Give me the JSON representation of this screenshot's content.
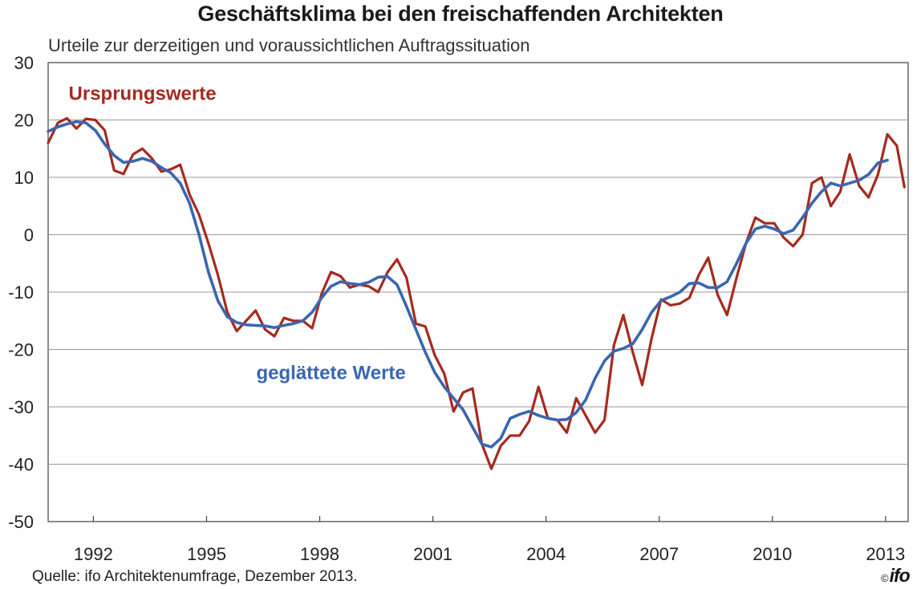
{
  "title": "Geschäftsklima bei den freischaffenden Architekten",
  "subtitle": "Urteile zur derzeitigen und voraussichtlichen Auftragssituation",
  "source": "Quelle: ifo Architektenumfrage, Dezember  2013.",
  "logo": {
    "copyright": "©",
    "text": "ifo"
  },
  "chart_data": {
    "type": "line",
    "ylim": [
      -50,
      30
    ],
    "yticks": [
      30,
      20,
      10,
      0,
      -10,
      -20,
      -30,
      -40,
      -50
    ],
    "xlim": [
      1990.8,
      2013.6
    ],
    "xticks": [
      "1992",
      "1995",
      "1998",
      "2001",
      "2004",
      "2007",
      "2010",
      "2013"
    ],
    "xtick_positions": [
      1992,
      1995,
      1998,
      2001,
      2004,
      2007,
      2010,
      2013
    ],
    "grid": true,
    "series": [
      {
        "name": "Ursprungswerte",
        "color": "#a52a1f",
        "label_position": [
          1993.3,
          23.5
        ],
        "x": [
          1990.8,
          1991.06,
          1991.3,
          1991.55,
          1991.8,
          1992.05,
          1992.3,
          1992.55,
          1992.8,
          1993.05,
          1993.3,
          1993.55,
          1993.8,
          1994.05,
          1994.3,
          1994.55,
          1994.8,
          1995.05,
          1995.3,
          1995.55,
          1995.8,
          1996.05,
          1996.3,
          1996.55,
          1996.8,
          1997.05,
          1997.3,
          1997.55,
          1997.8,
          1998.05,
          1998.3,
          1998.55,
          1998.8,
          1999.05,
          1999.3,
          1999.55,
          1999.8,
          2000.05,
          2000.3,
          2000.55,
          2000.8,
          2001.05,
          2001.3,
          2001.55,
          2001.8,
          2002.05,
          2002.3,
          2002.55,
          2002.8,
          2003.05,
          2003.3,
          2003.55,
          2003.8,
          2004.05,
          2004.3,
          2004.55,
          2004.8,
          2005.05,
          2005.3,
          2005.55,
          2005.8,
          2006.05,
          2006.3,
          2006.55,
          2006.8,
          2007.05,
          2007.3,
          2007.55,
          2007.8,
          2008.05,
          2008.3,
          2008.55,
          2008.8,
          2009.05,
          2009.3,
          2009.55,
          2009.8,
          2010.05,
          2010.3,
          2010.55,
          2010.8,
          2011.05,
          2011.3,
          2011.55,
          2011.8,
          2012.05,
          2012.3,
          2012.55,
          2012.8,
          2013.05,
          2013.3,
          2013.5
        ],
        "values": [
          16,
          19.5,
          20.3,
          18.5,
          20.2,
          20,
          18.2,
          11.2,
          10.6,
          14,
          15,
          13.3,
          11,
          11.4,
          12.2,
          7,
          3.5,
          -1.5,
          -7,
          -13.5,
          -16.8,
          -15,
          -13.2,
          -16.5,
          -17.7,
          -14.5,
          -15,
          -15,
          -16.3,
          -10.3,
          -6.5,
          -7.2,
          -9.2,
          -8.7,
          -9,
          -10,
          -6.5,
          -4.3,
          -7.5,
          -15.5,
          -16,
          -21,
          -24.2,
          -30.8,
          -27.5,
          -26.8,
          -36.5,
          -40.8,
          -36.8,
          -35,
          -35,
          -32.5,
          -26.5,
          -32,
          -32.3,
          -34.5,
          -28.5,
          -31.5,
          -34.5,
          -32.3,
          -19.2,
          -14,
          -20.5,
          -26.2,
          -18,
          -11.3,
          -12.3,
          -12,
          -11,
          -7,
          -4,
          -10.5,
          -14,
          -7.5,
          -1.5,
          3,
          2,
          2,
          -0.5,
          -2,
          0,
          9,
          10,
          5,
          7.5,
          14,
          8.5,
          6.5,
          10.5,
          17.5,
          15.5,
          8.3
        ]
      },
      {
        "name": "geglättete Werte",
        "color": "#3a66b0",
        "label_position": [
          1998.3,
          -25.2
        ],
        "x": [
          1990.8,
          1991.06,
          1991.3,
          1991.55,
          1991.8,
          1992.05,
          1992.3,
          1992.55,
          1992.8,
          1993.05,
          1993.3,
          1993.55,
          1993.8,
          1994.05,
          1994.3,
          1994.55,
          1994.8,
          1995.05,
          1995.3,
          1995.55,
          1995.8,
          1996.05,
          1996.3,
          1996.55,
          1996.8,
          1997.05,
          1997.3,
          1997.55,
          1997.8,
          1998.05,
          1998.3,
          1998.55,
          1998.8,
          1999.05,
          1999.3,
          1999.55,
          1999.8,
          2000.05,
          2000.3,
          2000.55,
          2000.8,
          2001.05,
          2001.3,
          2001.55,
          2001.8,
          2002.05,
          2002.3,
          2002.55,
          2002.8,
          2003.05,
          2003.3,
          2003.55,
          2003.8,
          2004.05,
          2004.3,
          2004.55,
          2004.8,
          2005.05,
          2005.3,
          2005.55,
          2005.8,
          2006.05,
          2006.3,
          2006.55,
          2006.8,
          2007.05,
          2007.3,
          2007.55,
          2007.8,
          2008.05,
          2008.3,
          2008.55,
          2008.8,
          2009.05,
          2009.3,
          2009.55,
          2009.8,
          2010.05,
          2010.3,
          2010.55,
          2010.8,
          2011.05,
          2011.3,
          2011.55,
          2011.8,
          2012.05,
          2012.3,
          2012.55,
          2012.8,
          2013.05
        ],
        "values": [
          18,
          18.8,
          19.3,
          19.7,
          19.5,
          18.2,
          15.8,
          13.8,
          12.6,
          12.8,
          13.3,
          12.8,
          11.7,
          10.8,
          9,
          5.5,
          0,
          -6.5,
          -11.5,
          -14.3,
          -15.3,
          -15.7,
          -15.8,
          -15.9,
          -16.2,
          -15.8,
          -15.5,
          -15,
          -13.5,
          -11,
          -9,
          -8.2,
          -8.5,
          -8.7,
          -8.3,
          -7.4,
          -7.3,
          -8.7,
          -12.5,
          -16.5,
          -20.5,
          -24,
          -26.5,
          -28.5,
          -30.5,
          -33.5,
          -36.5,
          -37,
          -35.5,
          -32,
          -31.3,
          -30.8,
          -31.5,
          -32,
          -32.3,
          -32.2,
          -31,
          -28.8,
          -25,
          -22,
          -20.3,
          -19.8,
          -19,
          -16.5,
          -13.5,
          -11.5,
          -10.8,
          -10,
          -8.5,
          -8.4,
          -9.2,
          -9.2,
          -8.2,
          -5,
          -1.5,
          1,
          1.5,
          1,
          0.2,
          0.8,
          3,
          5.5,
          7.5,
          9,
          8.5,
          9,
          9.5,
          10.5,
          12.5,
          13
        ]
      }
    ]
  }
}
